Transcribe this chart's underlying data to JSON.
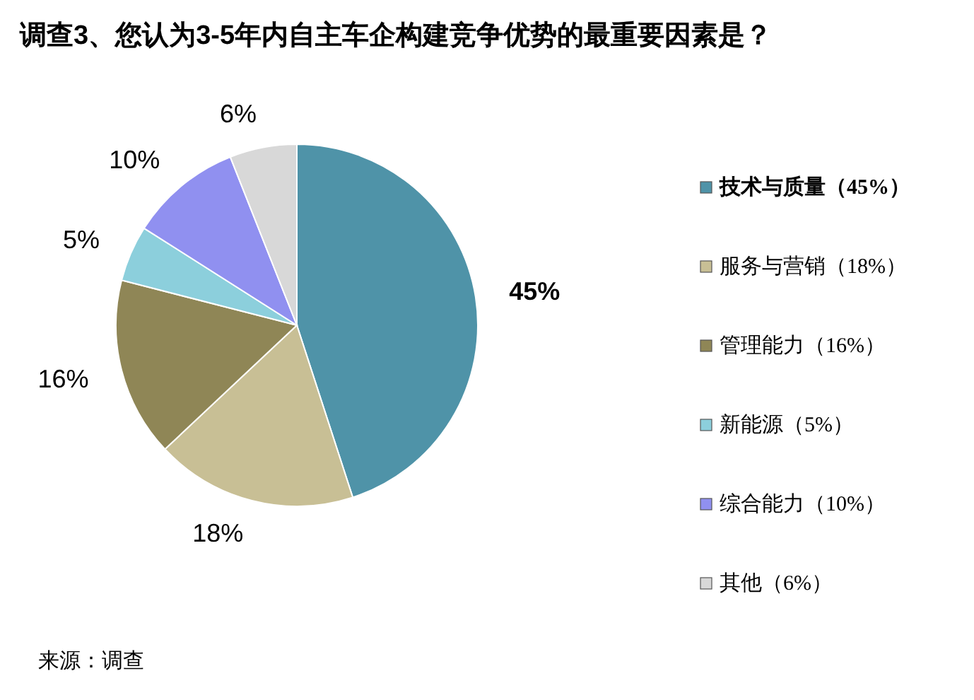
{
  "chart_data": {
    "type": "pie",
    "title": "调查3、您认为3-5年内自主车企构建竞争优势的最重要因素是？",
    "categories": [
      "技术与质量（45%）",
      "服务与营销（18%）",
      "管理能力（16%）",
      "新能源（5%）",
      "综合能力（10%）",
      "其他（6%）"
    ],
    "values": [
      45,
      18,
      16,
      5,
      10,
      6
    ],
    "value_labels": [
      "45%",
      "18%",
      "16%",
      "5%",
      "10%",
      "6%"
    ],
    "colors": [
      "#4f93a8",
      "#c8bf95",
      "#8f8656",
      "#8ccfdc",
      "#9090f0",
      "#d8d8d8"
    ],
    "legend": "right",
    "annotations": [
      "来源：调查"
    ]
  }
}
